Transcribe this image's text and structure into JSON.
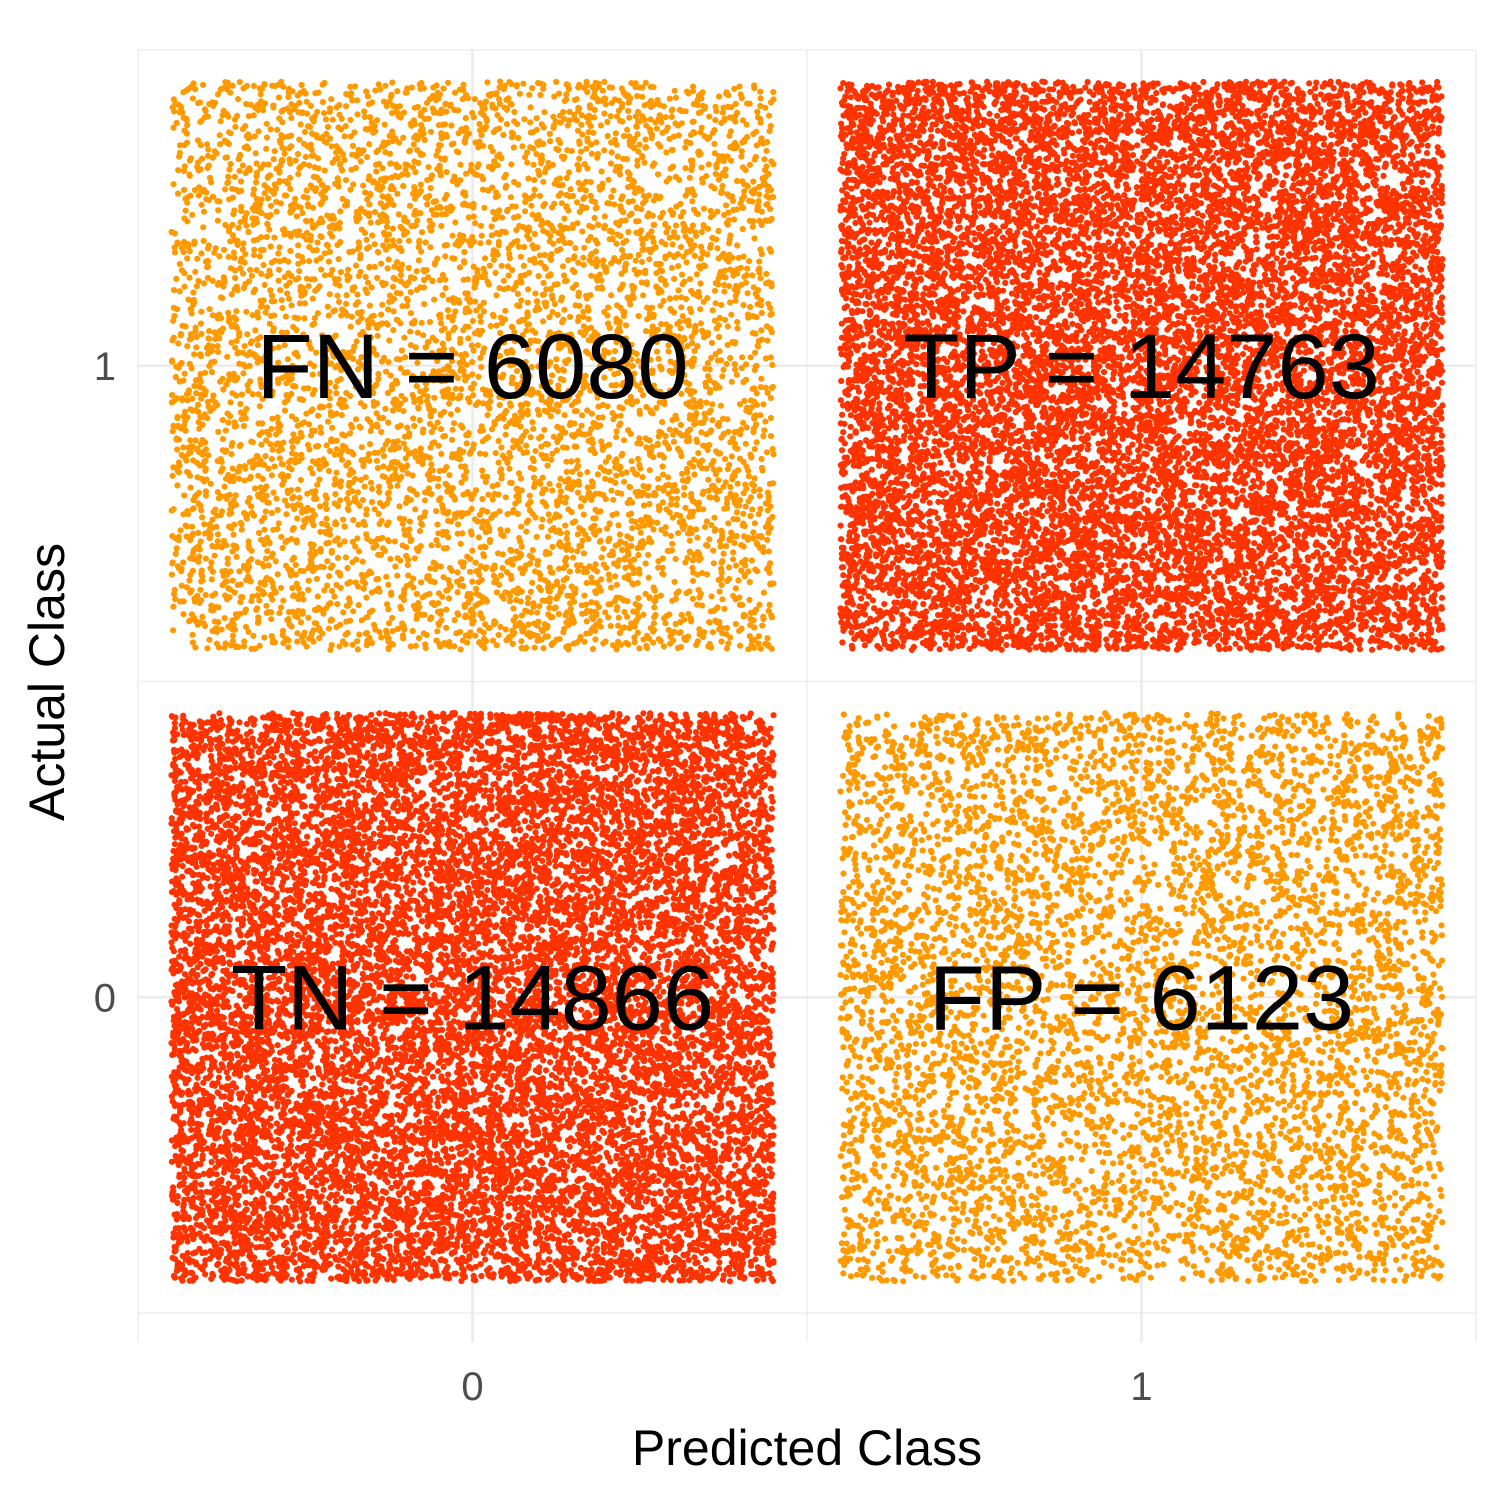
{
  "chart_data": {
    "type": "scatter",
    "subtype": "jittered confusion matrix",
    "title": "",
    "xlabel": "Predicted Class",
    "ylabel": "Actual Class",
    "x_categories": [
      "0",
      "1"
    ],
    "y_categories": [
      "0",
      "1"
    ],
    "xlim": [
      -0.5,
      1.5
    ],
    "ylim": [
      -0.5,
      1.5
    ],
    "grid": true,
    "legend": "none",
    "cells": [
      {
        "label": "TN",
        "predicted": "0",
        "actual": "0",
        "count": 14866,
        "text": "TN = 14866",
        "color": "#ff3300"
      },
      {
        "label": "FP",
        "predicted": "1",
        "actual": "0",
        "count": 6123,
        "text": "FP = 6123",
        "color": "#ff9900"
      },
      {
        "label": "FN",
        "predicted": "0",
        "actual": "1",
        "count": 6080,
        "text": "FN = 6080",
        "color": "#ff9900"
      },
      {
        "label": "TP",
        "predicted": "1",
        "actual": "1",
        "count": 14763,
        "text": "TP = 14763",
        "color": "#ff3300"
      }
    ]
  },
  "colors": {
    "correct": "#ff3300",
    "incorrect": "#ff9900",
    "grid": "#ebebeb",
    "axis_text": "#4d4d4d",
    "label_text": "#000000"
  }
}
